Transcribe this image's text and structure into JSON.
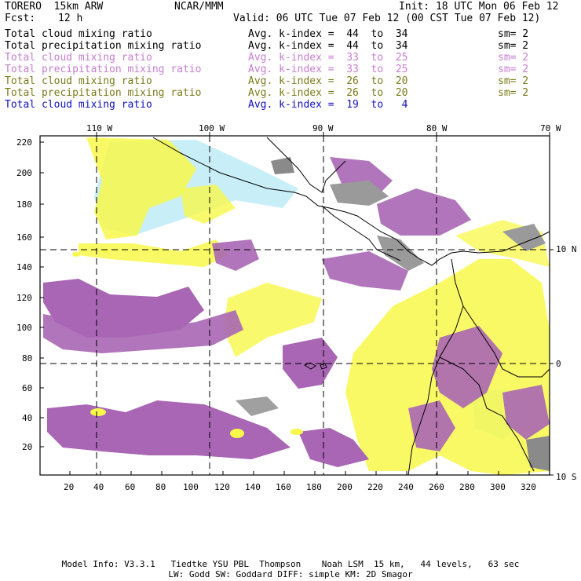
{
  "header": {
    "model": "TORERO  15km ARW",
    "center": "NCAR/MMM",
    "init": "Init: 18 UTC Mon 06 Feb 12",
    "fcst_label": "Fcst:",
    "fcst_value": "12 h",
    "valid": "Valid: 06 UTC Tue 07 Feb 12 (00 CST Tue 07 Feb 12)"
  },
  "legend": [
    {
      "field": "Total cloud mixing ratio",
      "kindex": "Avg. k-index =  44  to  34",
      "sm": "sm= 2",
      "color": "#000000"
    },
    {
      "field": "Total precipitation mixing ratio",
      "kindex": "Avg. k-index =  44  to  34",
      "sm": "sm= 2",
      "color": "#000000"
    },
    {
      "field": "Total cloud mixing ratio",
      "kindex": "Avg. k-index =  33  to  25",
      "sm": "sm= 2",
      "color": "#c77dd1"
    },
    {
      "field": "Total precipitation mixing ratio",
      "kindex": "Avg. k-index =  33  to  25",
      "sm": "sm= 2",
      "color": "#c77dd1"
    },
    {
      "field": "Total cloud mixing ratio",
      "kindex": "Avg. k-index =  26  to  20",
      "sm": "sm= 2",
      "color": "#7a7a1a"
    },
    {
      "field": "Total precipitation mixing ratio",
      "kindex": "Avg. k-index =  26  to  20",
      "sm": "sm= 2",
      "color": "#7a7a1a"
    },
    {
      "field": "Total cloud mixing ratio",
      "kindex": "Avg. k-index =  19  to   4",
      "sm": "",
      "color": "#1010c8"
    }
  ],
  "map": {
    "x_ticks": [
      "20",
      "40",
      "60",
      "80",
      "100",
      "120",
      "140",
      "160",
      "180",
      "200",
      "220",
      "240",
      "260",
      "280",
      "300",
      "320"
    ],
    "y_ticks": [
      "20",
      "40",
      "60",
      "80",
      "100",
      "120",
      "140",
      "160",
      "180",
      "200",
      "220"
    ],
    "lon_labels": [
      "110 W",
      "100 W",
      "90 W",
      "80 W",
      "70 W"
    ],
    "lat_labels": [
      "10 N",
      "0",
      "10 S"
    ],
    "colors": {
      "yellow": "#f8f84a",
      "pale_yellow": "#f7f7a0",
      "purple": "#a866b4",
      "gray": "#9a9a9a",
      "cyan": "#c8eef8"
    }
  },
  "footer": {
    "line1": "Model Info: V3.3.1   Tiedtke YSU PBL  Thompson    Noah LSM  15 km,   44 levels,   63 sec",
    "line2": "LW: Godd SW: Goddard DIFF: simple KM: 2D Smagor"
  }
}
